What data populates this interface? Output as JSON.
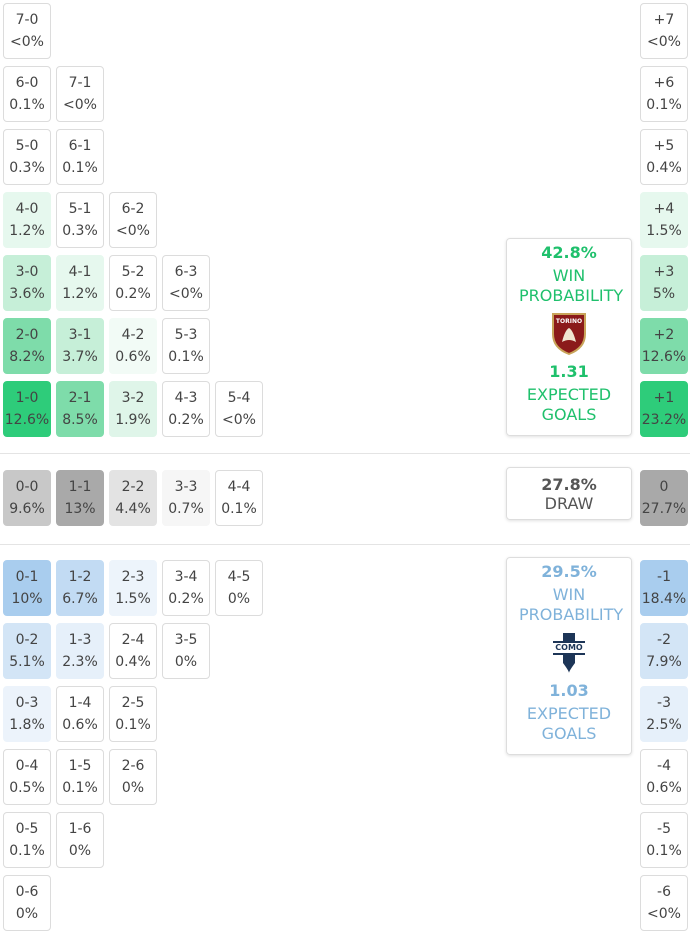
{
  "home_grid": [
    [
      {
        "score": "7-0",
        "prob": "<0%"
      }
    ],
    [
      {
        "score": "6-0",
        "prob": "0.1%"
      },
      {
        "score": "7-1",
        "prob": "<0%"
      }
    ],
    [
      {
        "score": "5-0",
        "prob": "0.3%"
      },
      {
        "score": "6-1",
        "prob": "0.1%"
      }
    ],
    [
      {
        "score": "4-0",
        "prob": "1.2%",
        "fill": "#e6f8ee"
      },
      {
        "score": "5-1",
        "prob": "0.3%"
      },
      {
        "score": "6-2",
        "prob": "<0%"
      }
    ],
    [
      {
        "score": "3-0",
        "prob": "3.6%",
        "fill": "#c6efd8"
      },
      {
        "score": "4-1",
        "prob": "1.2%",
        "fill": "#e6f8ee"
      },
      {
        "score": "5-2",
        "prob": "0.2%"
      },
      {
        "score": "6-3",
        "prob": "<0%"
      }
    ],
    [
      {
        "score": "2-0",
        "prob": "8.2%",
        "fill": "#7edcaa"
      },
      {
        "score": "3-1",
        "prob": "3.7%",
        "fill": "#c6efd8"
      },
      {
        "score": "4-2",
        "prob": "0.6%",
        "fill": "#f2fbf6"
      },
      {
        "score": "5-3",
        "prob": "0.1%"
      }
    ],
    [
      {
        "score": "1-0",
        "prob": "12.6%",
        "fill": "#2ecc7a"
      },
      {
        "score": "2-1",
        "prob": "8.5%",
        "fill": "#7edcaa"
      },
      {
        "score": "3-2",
        "prob": "1.9%",
        "fill": "#dff5e9"
      },
      {
        "score": "4-3",
        "prob": "0.2%"
      },
      {
        "score": "5-4",
        "prob": "<0%"
      }
    ]
  ],
  "draw_grid": [
    [
      {
        "score": "0-0",
        "prob": "9.6%",
        "fill": "#c8c8c8"
      },
      {
        "score": "1-1",
        "prob": "13%",
        "fill": "#a9a9a9"
      },
      {
        "score": "2-2",
        "prob": "4.4%",
        "fill": "#e3e3e3"
      },
      {
        "score": "3-3",
        "prob": "0.7%",
        "fill": "#f6f6f6"
      },
      {
        "score": "4-4",
        "prob": "0.1%"
      }
    ]
  ],
  "away_grid": [
    [
      {
        "score": "0-1",
        "prob": "10%",
        "fill": "#a9cdee"
      },
      {
        "score": "1-2",
        "prob": "6.7%",
        "fill": "#c2dbf3"
      },
      {
        "score": "2-3",
        "prob": "1.5%",
        "fill": "#edf4fb"
      },
      {
        "score": "3-4",
        "prob": "0.2%"
      },
      {
        "score": "4-5",
        "prob": "0%"
      }
    ],
    [
      {
        "score": "0-2",
        "prob": "5.1%",
        "fill": "#d3e5f6"
      },
      {
        "score": "1-3",
        "prob": "2.3%",
        "fill": "#e6f0fa"
      },
      {
        "score": "2-4",
        "prob": "0.4%"
      },
      {
        "score": "3-5",
        "prob": "0%"
      }
    ],
    [
      {
        "score": "0-3",
        "prob": "1.8%",
        "fill": "#ecf3fb"
      },
      {
        "score": "1-4",
        "prob": "0.6%"
      },
      {
        "score": "2-5",
        "prob": "0.1%"
      }
    ],
    [
      {
        "score": "0-4",
        "prob": "0.5%"
      },
      {
        "score": "1-5",
        "prob": "0.1%"
      },
      {
        "score": "2-6",
        "prob": "0%"
      }
    ],
    [
      {
        "score": "0-5",
        "prob": "0.1%"
      },
      {
        "score": "1-6",
        "prob": "0%"
      }
    ],
    [
      {
        "score": "0-6",
        "prob": "0%"
      }
    ]
  ],
  "margins_home": [
    {
      "score": "+7",
      "prob": "<0%"
    },
    {
      "score": "+6",
      "prob": "0.1%"
    },
    {
      "score": "+5",
      "prob": "0.4%"
    },
    {
      "score": "+4",
      "prob": "1.5%",
      "fill": "#e6f8ee"
    },
    {
      "score": "+3",
      "prob": "5%",
      "fill": "#c6efd8"
    },
    {
      "score": "+2",
      "prob": "12.6%",
      "fill": "#7edcaa"
    },
    {
      "score": "+1",
      "prob": "23.2%",
      "fill": "#2ecc7a"
    }
  ],
  "margin_draw": {
    "score": "0",
    "prob": "27.7%",
    "fill": "#a9a9a9"
  },
  "margins_away": [
    {
      "score": "-1",
      "prob": "18.4%",
      "fill": "#a9cdee"
    },
    {
      "score": "-2",
      "prob": "7.9%",
      "fill": "#d3e5f6"
    },
    {
      "score": "-3",
      "prob": "2.5%",
      "fill": "#e6f0fa"
    },
    {
      "score": "-4",
      "prob": "0.6%"
    },
    {
      "score": "-5",
      "prob": "0.1%"
    },
    {
      "score": "-6",
      "prob": "<0%"
    }
  ],
  "home_summary": {
    "win_prob": "42.8%",
    "win_label": "WIN PROBABILITY",
    "logo_text": "TORINO",
    "xg": "1.31",
    "xg_label": "EXPECTED GOALS",
    "color": "#1fc06c"
  },
  "draw_summary": {
    "prob": "27.8%",
    "label": "DRAW"
  },
  "away_summary": {
    "win_prob": "29.5%",
    "win_label": "WIN PROBABILITY",
    "logo_text": "COMO",
    "xg": "1.03",
    "xg_label": "EXPECTED GOALS",
    "color": "#7fb2da"
  }
}
